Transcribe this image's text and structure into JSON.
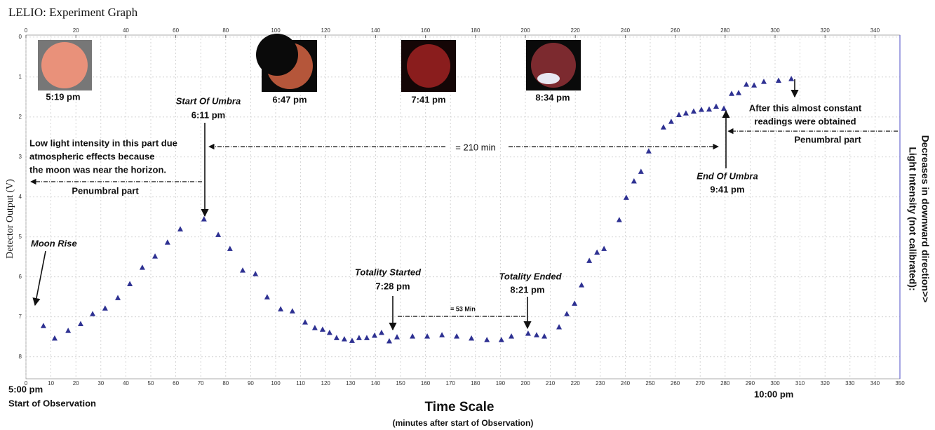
{
  "chart_data": {
    "type": "scatter",
    "title": "LELIO: Experiment Graph",
    "x_label": "Time Scale",
    "x_sublabel": "(minutes after start of Observation)",
    "y_label": "Detector Output (V)",
    "y2_label": [
      "Light Intensity (not calibrated):",
      "Decreases in downward direction>>"
    ],
    "color": "#2e3192",
    "xlim": [
      0,
      350
    ],
    "ylim": [
      -0.05,
      8.55
    ],
    "y_inverted": true,
    "grid": true,
    "xticks": [
      0,
      10,
      20,
      30,
      40,
      50,
      60,
      70,
      80,
      90,
      100,
      110,
      120,
      130,
      140,
      150,
      160,
      170,
      180,
      190,
      200,
      210,
      220,
      230,
      240,
      250,
      260,
      270,
      280,
      290,
      300,
      310,
      320,
      330,
      340,
      350
    ],
    "x2ticks": [
      0,
      20,
      40,
      60,
      80,
      100,
      120,
      140,
      160,
      180,
      200,
      220,
      240,
      260,
      280,
      300,
      320,
      340
    ],
    "yticks": [
      0,
      1,
      2,
      3,
      4,
      5,
      6,
      7,
      8
    ],
    "x": [
      7,
      11.5,
      16.9,
      21.9,
      26.7,
      31.7,
      36.8,
      41.6,
      46.6,
      51.7,
      56.7,
      61.8,
      71.3,
      77,
      81.7,
      86.8,
      91.9,
      96.6,
      102,
      106.7,
      111.8,
      115.7,
      118.8,
      121.6,
      124.4,
      127.5,
      130.6,
      133.4,
      136.5,
      139.6,
      142.4,
      145.5,
      148.6,
      154.8,
      160.7,
      166.6,
      172.5,
      178.4,
      184.6,
      190.4,
      194.4,
      201.1,
      204.5,
      207.6,
      213.5,
      216.6,
      219.7,
      222.5,
      225.6,
      228.7,
      231.5,
      237.6,
      240.4,
      243.5,
      246.3,
      249.4,
      255.3,
      258.4,
      261.5,
      264.3,
      267.4,
      270.5,
      273.6,
      276.4,
      279.5,
      282.6,
      285.4,
      288.5,
      291.6,
      295.5,
      301.4,
      306.5
    ],
    "values": [
      7.23,
      7.54,
      7.35,
      7.18,
      6.93,
      6.79,
      6.53,
      6.18,
      5.77,
      5.49,
      5.14,
      4.81,
      4.56,
      4.95,
      5.3,
      5.84,
      5.93,
      6.51,
      6.81,
      6.86,
      7.14,
      7.28,
      7.32,
      7.4,
      7.53,
      7.56,
      7.6,
      7.53,
      7.53,
      7.47,
      7.4,
      7.61,
      7.51,
      7.49,
      7.49,
      7.46,
      7.49,
      7.54,
      7.58,
      7.58,
      7.49,
      7.42,
      7.46,
      7.49,
      7.26,
      6.93,
      6.67,
      6.21,
      5.6,
      5.39,
      5.3,
      4.58,
      4.02,
      3.61,
      3.37,
      2.86,
      2.26,
      2.12,
      1.95,
      1.91,
      1.86,
      1.82,
      1.81,
      1.74,
      1.79,
      1.42,
      1.4,
      1.19,
      1.21,
      1.12,
      1.09,
      1.05
    ],
    "photo_captions": [
      "5:19 pm",
      "6:47 pm",
      "7:41 pm",
      "8:34 pm"
    ],
    "annotations": [
      "Moon Rise",
      "Start Of  Umbra",
      "6:11 pm",
      "Low light intensity in this part due",
      "atmospheric effects because",
      "the moon was near the horizon.",
      "Penumbral part",
      "= 210 min",
      "After this almost constant",
      "readings were obtained",
      "Penumbral part",
      "End Of  Umbra",
      "9:41 pm",
      "Totality Started",
      "7:28 pm",
      "= 53 Min",
      "Totality Ended",
      "8:21 pm"
    ],
    "bottom_labels": [
      "5:00 pm",
      "Start of Observation",
      "10:00 pm"
    ]
  }
}
